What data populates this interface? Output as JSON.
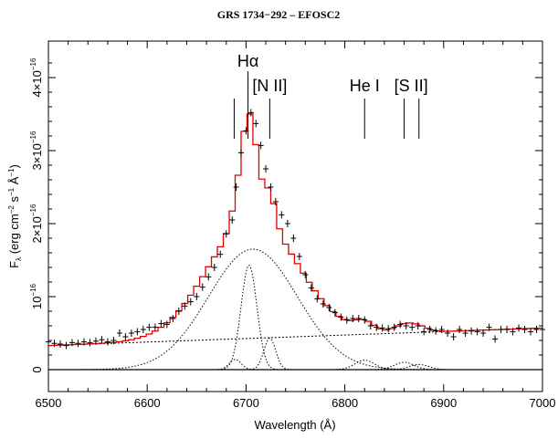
{
  "chart_data": {
    "type": "line",
    "title": "GRS 1734−292 – EFOSC2",
    "xlabel": "Wavelength (Å)",
    "ylabel_main": "F",
    "ylabel_sub": "λ",
    "ylabel_rest": " (erg  cm",
    "ylabel_rest2": " s",
    "ylabel_rest3": " Å",
    "ylabel_rest4": ")",
    "ylabel_sup1": "−2",
    "ylabel_sup2": "−1",
    "ylabel_sup3": "−1",
    "xlim": [
      6500,
      7000
    ],
    "ylim": [
      -3e-17,
      4.5e-16
    ],
    "x_ticks": [
      {
        "value": 6500,
        "label": "6500"
      },
      {
        "value": 6600,
        "label": "6600"
      },
      {
        "value": 6700,
        "label": "6700"
      },
      {
        "value": 6800,
        "label": "6800"
      },
      {
        "value": 6900,
        "label": "6900"
      },
      {
        "value": 7000,
        "label": "7000"
      }
    ],
    "y_ticks": [
      {
        "value": 0,
        "label": "0",
        "exp": ""
      },
      {
        "value": 1e-16,
        "label": "10",
        "exp": "−16"
      },
      {
        "value": 2e-16,
        "label": "2×10",
        "exp": "−16"
      },
      {
        "value": 3e-16,
        "label": "3×10",
        "exp": "−16"
      },
      {
        "value": 4e-16,
        "label": "4×10",
        "exp": "−16"
      }
    ],
    "line_labels": [
      {
        "label": "Hα",
        "x": 6702,
        "markers": [
          6702
        ]
      },
      {
        "label": "[N II]",
        "x": 6724,
        "markers": [
          6688,
          6724
        ]
      },
      {
        "label": "He I",
        "x": 6820,
        "markers": [
          6820
        ]
      },
      {
        "label": "[S II]",
        "x": 6867,
        "markers": [
          6860,
          6875
        ]
      }
    ],
    "data_points": [
      [
        6500,
        0.38
      ],
      [
        6506,
        0.36
      ],
      [
        6512,
        0.35
      ],
      [
        6518,
        0.33
      ],
      [
        6524,
        0.37
      ],
      [
        6530,
        0.36
      ],
      [
        6536,
        0.38
      ],
      [
        6542,
        0.37
      ],
      [
        6548,
        0.39
      ],
      [
        6554,
        0.41
      ],
      [
        6560,
        0.38
      ],
      [
        6566,
        0.4
      ],
      [
        6572,
        0.5
      ],
      [
        6578,
        0.45
      ],
      [
        6584,
        0.5
      ],
      [
        6590,
        0.52
      ],
      [
        6596,
        0.55
      ],
      [
        6602,
        0.58
      ],
      [
        6608,
        0.58
      ],
      [
        6614,
        0.63
      ],
      [
        6620,
        0.62
      ],
      [
        6626,
        0.7
      ],
      [
        6632,
        0.8
      ],
      [
        6638,
        0.87
      ],
      [
        6644,
        0.93
      ],
      [
        6650,
        1.0
      ],
      [
        6656,
        1.13
      ],
      [
        6662,
        1.27
      ],
      [
        6668,
        1.4
      ],
      [
        6674,
        1.58
      ],
      [
        6680,
        1.86
      ],
      [
        6686,
        2.05
      ],
      [
        6690,
        2.5
      ],
      [
        6695,
        2.97
      ],
      [
        6700,
        3.27
      ],
      [
        6705,
        3.52
      ],
      [
        6710,
        3.37
      ],
      [
        6715,
        3.07
      ],
      [
        6720,
        2.75
      ],
      [
        6725,
        2.5
      ],
      [
        6730,
        2.3
      ],
      [
        6736,
        2.12
      ],
      [
        6742,
        2.0
      ],
      [
        6748,
        1.8
      ],
      [
        6754,
        1.55
      ],
      [
        6760,
        1.3
      ],
      [
        6766,
        1.12
      ],
      [
        6772,
        0.97
      ],
      [
        6778,
        0.9
      ],
      [
        6784,
        0.85
      ],
      [
        6790,
        0.78
      ],
      [
        6796,
        0.72
      ],
      [
        6802,
        0.68
      ],
      [
        6808,
        0.7
      ],
      [
        6814,
        0.7
      ],
      [
        6820,
        0.68
      ],
      [
        6826,
        0.6
      ],
      [
        6832,
        0.58
      ],
      [
        6838,
        0.57
      ],
      [
        6844,
        0.56
      ],
      [
        6850,
        0.58
      ],
      [
        6856,
        0.62
      ],
      [
        6862,
        0.6
      ],
      [
        6868,
        0.58
      ],
      [
        6874,
        0.6
      ],
      [
        6880,
        0.52
      ],
      [
        6886,
        0.55
      ],
      [
        6892,
        0.53
      ],
      [
        6898,
        0.55
      ],
      [
        6904,
        0.5
      ],
      [
        6910,
        0.45
      ],
      [
        6916,
        0.55
      ],
      [
        6922,
        0.5
      ],
      [
        6928,
        0.53
      ],
      [
        6934,
        0.52
      ],
      [
        6940,
        0.5
      ],
      [
        6946,
        0.58
      ],
      [
        6952,
        0.42
      ],
      [
        6958,
        0.55
      ],
      [
        6964,
        0.55
      ],
      [
        6970,
        0.52
      ],
      [
        6976,
        0.57
      ],
      [
        6982,
        0.55
      ],
      [
        6988,
        0.52
      ],
      [
        6994,
        0.55
      ],
      [
        7000,
        0.55
      ]
    ],
    "model_components": {
      "continuum": {
        "a": 0.33,
        "b": 0.57
      },
      "gaussians": [
        {
          "name": "broad",
          "center": 6707,
          "sigma": 45,
          "amp": 1.65
        },
        {
          "name": "narrow",
          "center": 6703,
          "sigma": 8,
          "amp": 1.43
        },
        {
          "name": "nii_red",
          "center": 6724,
          "sigma": 6,
          "amp": 0.43
        },
        {
          "name": "nii_blue",
          "center": 6689,
          "sigma": 6,
          "amp": 0.14
        },
        {
          "name": "hei",
          "center": 6820,
          "sigma": 10,
          "amp": 0.13
        },
        {
          "name": "sii_a",
          "center": 6860,
          "sigma": 10,
          "amp": 0.1
        },
        {
          "name": "sii_b",
          "center": 6875,
          "sigma": 10,
          "amp": 0.07
        }
      ]
    },
    "colors": {
      "model": "#e00000",
      "axis": "#000000",
      "components": "#000000"
    }
  }
}
